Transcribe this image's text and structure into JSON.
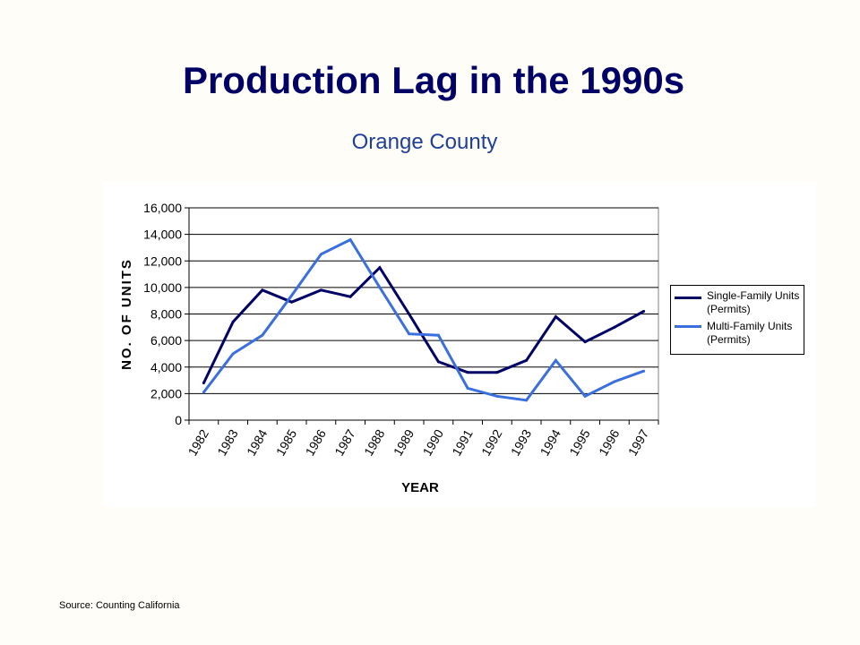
{
  "slide": {
    "title": "Production Lag in the 1990s",
    "subtitle": "Orange County",
    "source": "Source: Counting California"
  },
  "chart_data": {
    "type": "line",
    "xlabel": "YEAR",
    "ylabel": "NO. OF UNITS",
    "categories": [
      "1982",
      "1983",
      "1984",
      "1985",
      "1986",
      "1987",
      "1988",
      "1989",
      "1990",
      "1991",
      "1992",
      "1993",
      "1994",
      "1995",
      "1996",
      "1997"
    ],
    "y_ticks": [
      "0",
      "2,000",
      "4,000",
      "6,000",
      "8,000",
      "10,000",
      "12,000",
      "14,000",
      "16,000"
    ],
    "ylim": [
      0,
      16000
    ],
    "grid": "horizontal",
    "legend_position": "right",
    "series": [
      {
        "name": "Single-Family Units (Permits)",
        "color": "#000066",
        "values": [
          2800,
          7400,
          9800,
          8900,
          9800,
          9300,
          11500,
          8000,
          4400,
          3600,
          3600,
          4500,
          7800,
          5900,
          7000,
          8200
        ]
      },
      {
        "name": "Multi-Family Units (Permits)",
        "color": "#3a6fe0",
        "values": [
          2100,
          5000,
          6400,
          9400,
          12500,
          13600,
          10000,
          6500,
          6400,
          2400,
          1800,
          1500,
          4500,
          1800,
          2900,
          3700
        ]
      }
    ]
  }
}
